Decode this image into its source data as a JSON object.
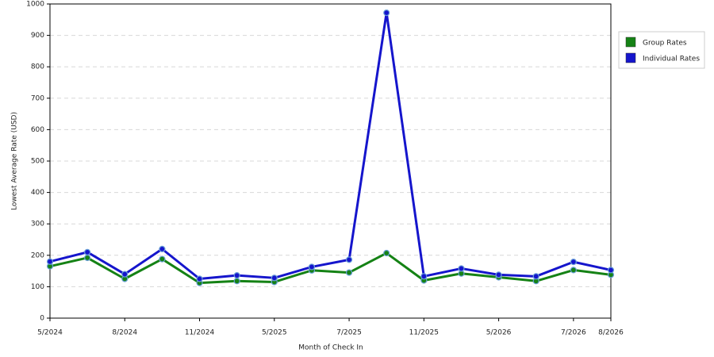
{
  "chart_data": {
    "type": "line",
    "x_label": "Month of Check In",
    "y_label": "Lowest Average Rate (USD)",
    "categories": [
      "5/2024",
      null,
      "8/2024",
      null,
      "11/2024",
      null,
      "5/2025",
      null,
      "7/2025",
      null,
      "11/2025",
      null,
      "5/2026",
      null,
      "7/2026",
      "8/2026"
    ],
    "series": [
      {
        "name": "Group Rates",
        "color": "#158215",
        "values": [
          165,
          192,
          125,
          188,
          112,
          118,
          115,
          152,
          145,
          207,
          120,
          142,
          130,
          118,
          153,
          138
        ]
      },
      {
        "name": "Individual Rates",
        "color": "#1515cc",
        "values": [
          180,
          210,
          140,
          220,
          125,
          136,
          128,
          163,
          186,
          972,
          133,
          158,
          138,
          133,
          179,
          153
        ]
      }
    ],
    "ylim": [
      0,
      1000
    ],
    "yticks": [
      0,
      100,
      200,
      300,
      400,
      500,
      600,
      700,
      800,
      900,
      1000
    ],
    "grid": true,
    "legend": "right"
  }
}
